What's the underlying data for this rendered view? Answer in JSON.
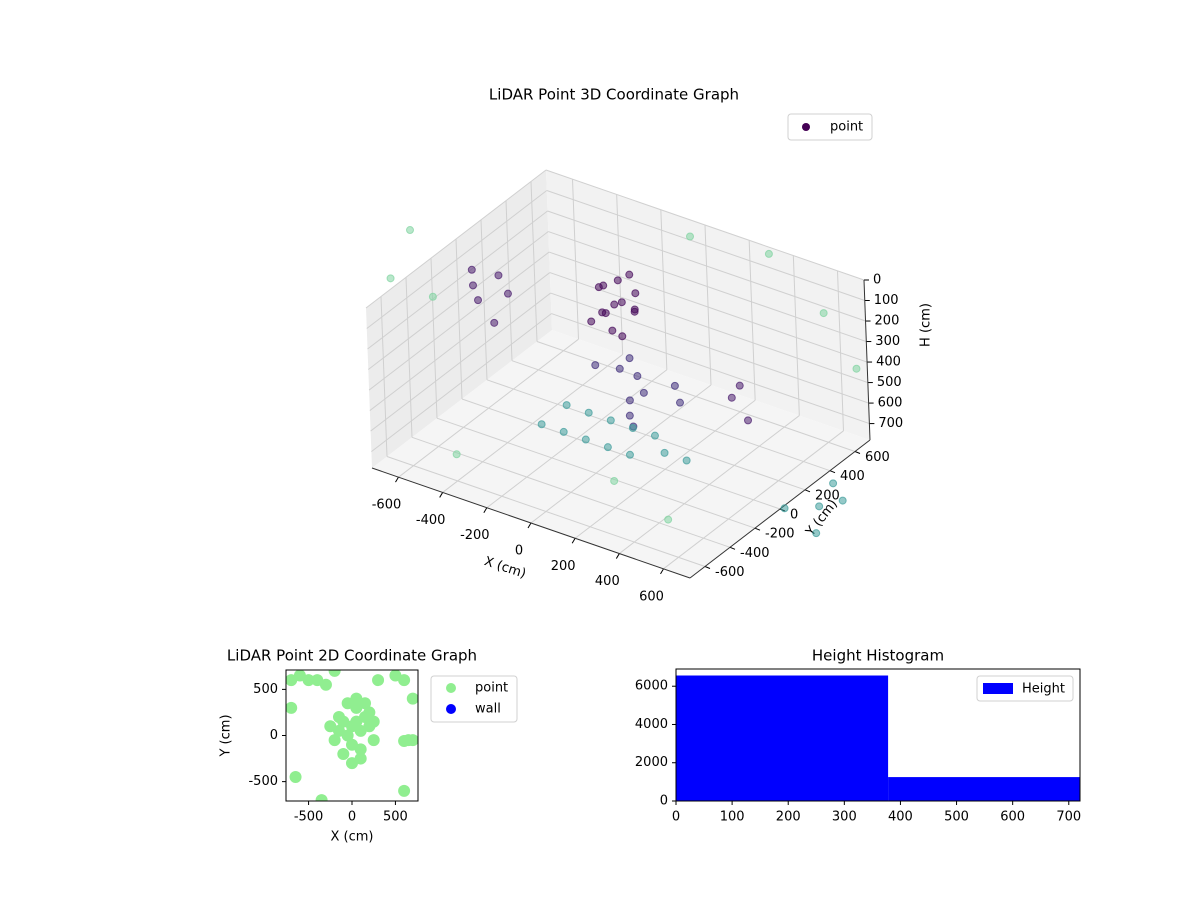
{
  "chart_data": [
    {
      "type": "scatter3d",
      "title": "LiDAR Point 3D Coordinate Graph",
      "xlabel": "X (cm)",
      "ylabel": "Y (cm)",
      "zlabel": "H (cm)",
      "xlim": [
        -720,
        720
      ],
      "ylim": [
        -720,
        720
      ],
      "zlim": [
        780,
        0
      ],
      "xticks": [
        -600,
        -400,
        -200,
        0,
        200,
        400,
        600
      ],
      "yticks": [
        -600,
        -400,
        -200,
        0,
        200,
        400,
        600
      ],
      "zticks": [
        0,
        100,
        200,
        300,
        400,
        500,
        600,
        700
      ],
      "legend": "upper right",
      "grid": true,
      "series": [
        {
          "name": "point",
          "color": "#440154",
          "x": [
            -200,
            -150,
            -100,
            -180,
            -250,
            -120,
            -60,
            -220,
            -160,
            -90,
            -140,
            -30,
            -200,
            -80,
            -80,
            0,
            50,
            112,
            150,
            -50,
            80,
            200,
            250,
            -150,
            -650,
            -600,
            -700,
            -550,
            -620,
            -500,
            400,
            500,
            350,
            -300,
            -200,
            -100,
            0,
            100,
            -300,
            -200,
            -100,
            0,
            100,
            200,
            300,
            800,
            900,
            950,
            1000,
            850,
            -900,
            -850,
            -600,
            0,
            300,
            600,
            800,
            -400,
            500,
            200
          ],
          "y": [
            250,
            280,
            220,
            200,
            300,
            320,
            260,
            180,
            240,
            300,
            160,
            200,
            330,
            180,
            230,
            150,
            0,
            -110,
            -150,
            100,
            60,
            100,
            50,
            80,
            0,
            -50,
            80,
            100,
            150,
            -100,
            200,
            150,
            350,
            -100,
            -100,
            -100,
            -100,
            -100,
            100,
            100,
            100,
            100,
            100,
            0,
            0,
            -100,
            0,
            100,
            -200,
            200,
            -50,
            -300,
            -400,
            600,
            700,
            600,
            500,
            -600,
            -500,
            -400
          ],
          "z": [
            150,
            120,
            180,
            250,
            200,
            100,
            140,
            300,
            350,
            260,
            220,
            180,
            280,
            320,
            450,
            470,
            500,
            500,
            520,
            430,
            480,
            420,
            460,
            440,
            200,
            230,
            180,
            250,
            210,
            280,
            450,
            500,
            480,
            700,
            700,
            700,
            700,
            700,
            700,
            700,
            700,
            700,
            700,
            700,
            700,
            700,
            700,
            700,
            700,
            700,
            0,
            100,
            50,
            0,
            20,
            150,
            300,
            650,
            680,
            650
          ],
          "colors": [
            "#45085a",
            "#45085a",
            "#45085a",
            "#45085a",
            "#45085a",
            "#45085a",
            "#45085a",
            "#45085a",
            "#45085a",
            "#45085a",
            "#45085a",
            "#45085a",
            "#45085a",
            "#45085a",
            "#3f2d7a",
            "#3f2d7a",
            "#3f2d7a",
            "#3f2d7a",
            "#3f2d7a",
            "#3f2d7a",
            "#3f2d7a",
            "#3f2d7a",
            "#3f2d7a",
            "#3f2d7a",
            "#4a1d6e",
            "#4a1d6e",
            "#4a1d6e",
            "#4a1d6e",
            "#4a1d6e",
            "#4a1d6e",
            "#4a1d6e",
            "#4a1d6e",
            "#4a1d6e",
            "#3e9c9b",
            "#3e9c9b",
            "#3e9c9b",
            "#3e9c9b",
            "#3e9c9b",
            "#3e9c9b",
            "#3e9c9b",
            "#3e9c9b",
            "#3e9c9b",
            "#3e9c9b",
            "#3e9c9b",
            "#3e9c9b",
            "#3e9c9b",
            "#3e9c9b",
            "#3e9c9b",
            "#3e9c9b",
            "#3e9c9b",
            "#7fd3a0",
            "#7fd3a0",
            "#7fd3a0",
            "#7fd3a0",
            "#7fd3a0",
            "#7fd3a0",
            "#7fd3a0",
            "#7fd3a0",
            "#7fd3a0",
            "#7fd3a0"
          ]
        }
      ]
    },
    {
      "type": "scatter",
      "title": "LiDAR Point 2D Coordinate Graph",
      "xlabel": "X (cm)",
      "ylabel": "Y (cm)",
      "xlim": [
        -760,
        760
      ],
      "ylim": [
        -710,
        710
      ],
      "xticks": [
        -500,
        0,
        500
      ],
      "yticks": [
        -500,
        0,
        500
      ],
      "legend": "outside right",
      "series": [
        {
          "name": "point",
          "color": "#90ee90",
          "x": [
            -700,
            -600,
            -400,
            -200,
            500,
            600,
            700,
            650,
            700,
            600,
            -700,
            -650,
            -350,
            600,
            300,
            -300,
            -500,
            0,
            50,
            100,
            150,
            -50,
            -100,
            -150,
            200,
            250,
            -200,
            0,
            100,
            -100,
            50,
            150,
            -50,
            200,
            100,
            -150,
            0,
            250,
            -250,
            50
          ],
          "y": [
            600,
            650,
            600,
            700,
            650,
            600,
            400,
            -50,
            -50,
            -60,
            300,
            -450,
            -700,
            -600,
            600,
            550,
            600,
            100,
            150,
            50,
            200,
            0,
            150,
            50,
            100,
            -50,
            -50,
            -100,
            -150,
            -200,
            300,
            350,
            350,
            250,
            -250,
            200,
            -300,
            150,
            100,
            400
          ]
        },
        {
          "name": "wall",
          "color": "#0000ff",
          "x": [],
          "y": []
        }
      ]
    },
    {
      "type": "histogram",
      "title": "Height Histogram",
      "name": "Height",
      "color": "#0000ff",
      "bins": [
        0,
        378,
        720
      ],
      "values": [
        6560,
        1250
      ],
      "xlim": [
        0,
        720
      ],
      "ylim": [
        0,
        6900
      ],
      "xticks": [
        0,
        100,
        200,
        300,
        400,
        500,
        600,
        700
      ],
      "yticks": [
        0,
        2000,
        4000,
        6000
      ],
      "legend": "upper right"
    }
  ]
}
